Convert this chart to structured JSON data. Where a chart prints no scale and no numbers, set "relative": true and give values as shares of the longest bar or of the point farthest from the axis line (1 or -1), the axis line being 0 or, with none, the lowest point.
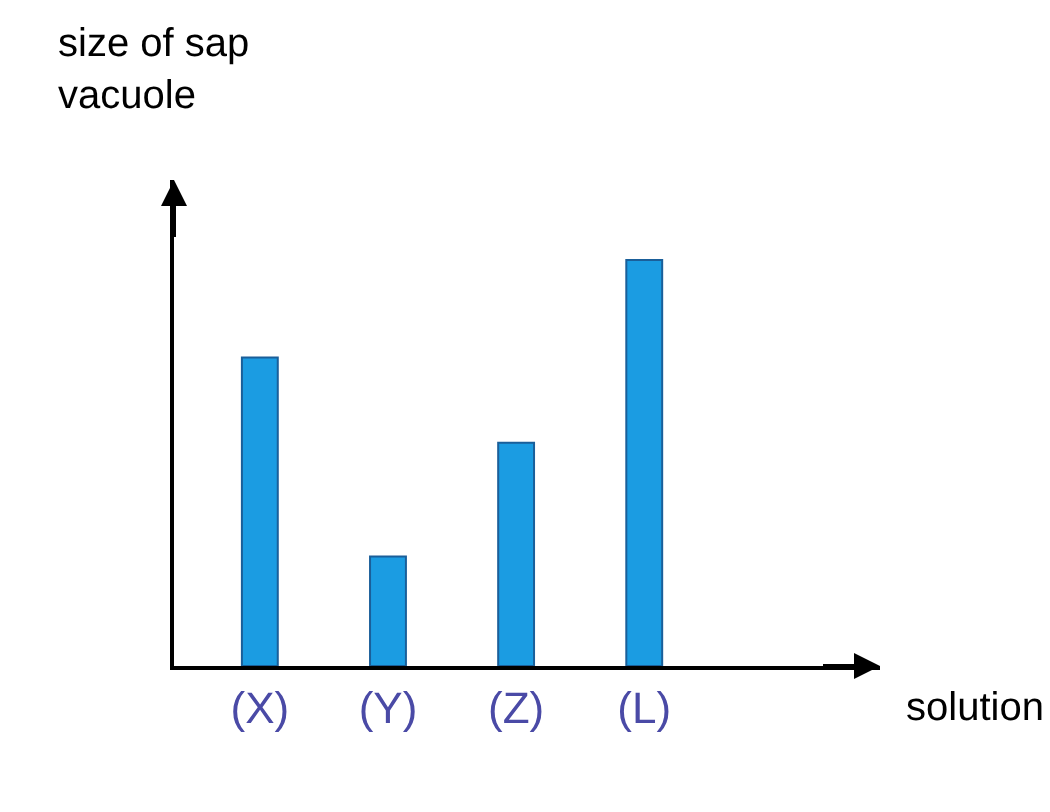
{
  "chart_data": {
    "type": "bar",
    "relative": true,
    "xlabel": "solution",
    "ylabel": "size of sap\nvacuole",
    "categories": [
      "(X)",
      "(Y)",
      "(Z)",
      "(L)"
    ],
    "values": [
      0.76,
      0.27,
      0.55,
      1
    ],
    "color": "#1b9ce2",
    "legend": false
  }
}
